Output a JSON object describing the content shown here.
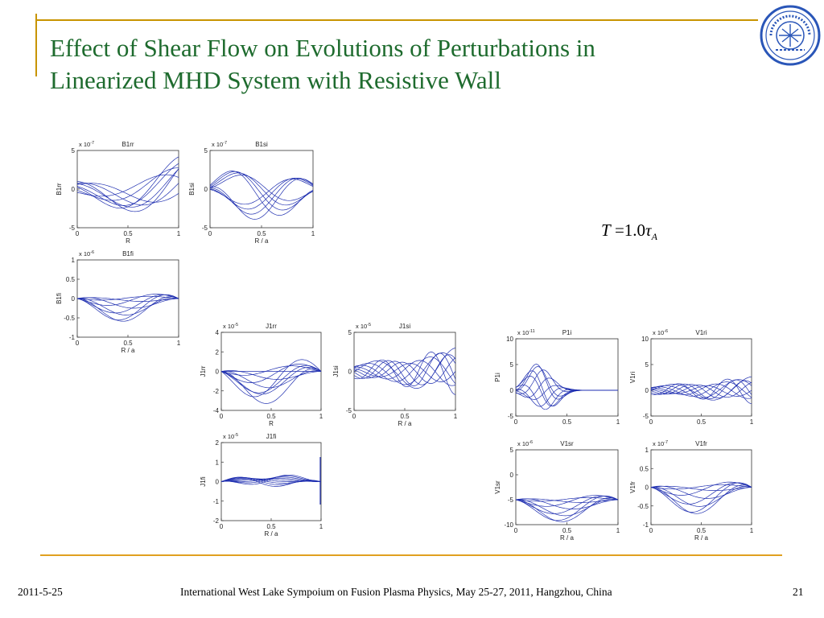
{
  "slide": {
    "title_line1": "Effect of Shear Flow on Evolutions of Perturbations in",
    "title_line2": "Linearized MHD System with Resistive Wall",
    "equation": {
      "lhs": "T",
      "eq": "=1.0",
      "tau": "τ",
      "sub": "A"
    },
    "footer": {
      "date": "2011-5-25",
      "conference": "International West Lake Sympoium on Fusion Plasma Physics, May 25-27, 2011, Hangzhou, China",
      "page": "21"
    },
    "accent_color": "#c89400",
    "title_color": "#1e6b2e",
    "logo_icon": "university-seal-icon",
    "curve_color": "#1f2fb0"
  },
  "plots": [
    {
      "id": "B1rr",
      "title": "B1rr",
      "ylabel": "B1rr",
      "xlabel": "R",
      "exponent_base": "x 10",
      "exponent": "-7",
      "yticks": [
        "5",
        "0",
        "-5"
      ],
      "xticks": [
        "0",
        "0.5",
        "1"
      ]
    },
    {
      "id": "B1si",
      "title": "B1si",
      "ylabel": "B1si",
      "xlabel": "R / a",
      "exponent_base": "x 10",
      "exponent": "-7",
      "yticks": [
        "5",
        "0",
        "-5"
      ],
      "xticks": [
        "0",
        "0.5",
        "1"
      ]
    },
    {
      "id": "B1fi",
      "title": "B1fi",
      "ylabel": "B1fi",
      "xlabel": "R / a",
      "exponent_base": "x 10",
      "exponent": "-6",
      "yticks": [
        "1",
        "0.5",
        "0",
        "-0.5",
        "-1"
      ],
      "xticks": [
        "0",
        "0.5",
        "1"
      ]
    },
    {
      "id": "J1rr",
      "title": "J1rr",
      "ylabel": "J1rr",
      "xlabel": "R",
      "exponent_base": "x 10",
      "exponent": "-5",
      "yticks": [
        "4",
        "2",
        "0",
        "-2",
        "-4"
      ],
      "xticks": [
        "0",
        "0.5",
        "1"
      ]
    },
    {
      "id": "J1si",
      "title": "J1si",
      "ylabel": "J1si",
      "xlabel": "R / a",
      "exponent_base": "x 10",
      "exponent": "-5",
      "yticks": [
        "5",
        "0",
        "-5"
      ],
      "xticks": [
        "0",
        "0.5",
        "1"
      ]
    },
    {
      "id": "J1fi",
      "title": "J1fi",
      "ylabel": "J1fi",
      "xlabel": "R / a",
      "exponent_base": "x 10",
      "exponent": "-5",
      "yticks": [
        "2",
        "1",
        "0",
        "-1",
        "-2"
      ],
      "xticks": [
        "0",
        "0.5",
        "1"
      ]
    },
    {
      "id": "P1i",
      "title": "P1i",
      "ylabel": "P1i",
      "xlabel": "",
      "exponent_base": "x 10",
      "exponent": "-11",
      "yticks": [
        "10",
        "5",
        "0",
        "-5"
      ],
      "xticks": [
        "0",
        "0.5",
        "1"
      ]
    },
    {
      "id": "V1ri",
      "title": "V1ri",
      "ylabel": "V1ri",
      "xlabel": "",
      "exponent_base": "x 10",
      "exponent": "-6",
      "yticks": [
        "10",
        "5",
        "0",
        "-5"
      ],
      "xticks": [
        "0",
        "0.5",
        "1"
      ]
    },
    {
      "id": "V1sr",
      "title": "V1sr",
      "ylabel": "V1sr",
      "xlabel": "R / a",
      "exponent_base": "x 10",
      "exponent": "-6",
      "yticks": [
        "5",
        "0",
        "-5",
        "-10"
      ],
      "xticks": [
        "0",
        "0.5",
        "1"
      ]
    },
    {
      "id": "V1fr",
      "title": "V1fr",
      "ylabel": "V1fr",
      "xlabel": "R / a",
      "exponent_base": "x 10",
      "exponent": "-7",
      "yticks": [
        "1",
        "0.5",
        "0",
        "-0.5",
        "-1"
      ],
      "xticks": [
        "0",
        "0.5",
        "1"
      ]
    }
  ]
}
